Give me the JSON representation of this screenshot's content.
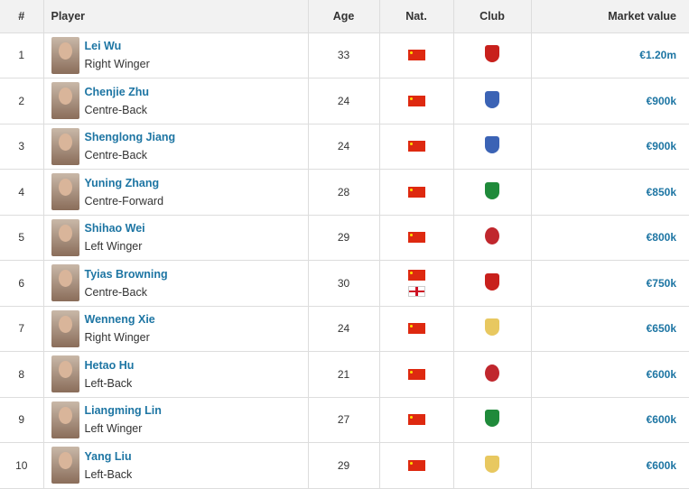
{
  "headers": {
    "rank": "#",
    "player": "Player",
    "age": "Age",
    "nat": "Nat.",
    "club": "Club",
    "value": "Market value"
  },
  "rows": [
    {
      "rank": "1",
      "name": "Lei Wu",
      "position": "Right Winger",
      "age": "33",
      "nat": [
        "China"
      ],
      "club": "shanghai-port-crest",
      "club_color": "#c8201c",
      "value": "€1.20m"
    },
    {
      "rank": "2",
      "name": "Chenjie Zhu",
      "position": "Centre-Back",
      "age": "24",
      "nat": [
        "China"
      ],
      "club": "shanghai-shenhua-crest",
      "club_color": "#3b63b5",
      "value": "€900k"
    },
    {
      "rank": "3",
      "name": "Shenglong Jiang",
      "position": "Centre-Back",
      "age": "24",
      "nat": [
        "China"
      ],
      "club": "shanghai-shenhua-crest",
      "club_color": "#3b63b5",
      "value": "€900k"
    },
    {
      "rank": "4",
      "name": "Yuning Zhang",
      "position": "Centre-Forward",
      "age": "28",
      "nat": [
        "China"
      ],
      "club": "beijing-guoan-crest",
      "club_color": "#1f8a3a",
      "value": "€850k"
    },
    {
      "rank": "5",
      "name": "Shihao Wei",
      "position": "Left Winger",
      "age": "29",
      "nat": [
        "China"
      ],
      "club": "red-round-crest",
      "club_color": "#c0272d",
      "value": "€800k"
    },
    {
      "rank": "6",
      "name": "Tyias Browning",
      "position": "Centre-Back",
      "age": "30",
      "nat": [
        "China",
        "England"
      ],
      "club": "shanghai-port-crest",
      "club_color": "#c8201c",
      "value": "€750k"
    },
    {
      "rank": "7",
      "name": "Wenneng Xie",
      "position": "Right Winger",
      "age": "24",
      "nat": [
        "China"
      ],
      "club": "white-red-shield-crest",
      "club_color": "#e8c860",
      "value": "€650k"
    },
    {
      "rank": "8",
      "name": "Hetao Hu",
      "position": "Left-Back",
      "age": "21",
      "nat": [
        "China"
      ],
      "club": "red-round-crest",
      "club_color": "#c0272d",
      "value": "€600k"
    },
    {
      "rank": "9",
      "name": "Liangming Lin",
      "position": "Left Winger",
      "age": "27",
      "nat": [
        "China"
      ],
      "club": "beijing-guoan-crest",
      "club_color": "#1f8a3a",
      "value": "€600k"
    },
    {
      "rank": "10",
      "name": "Yang Liu",
      "position": "Left-Back",
      "age": "29",
      "nat": [
        "China"
      ],
      "club": "white-red-shield-crest",
      "club_color": "#e8c860",
      "value": "€600k"
    }
  ]
}
